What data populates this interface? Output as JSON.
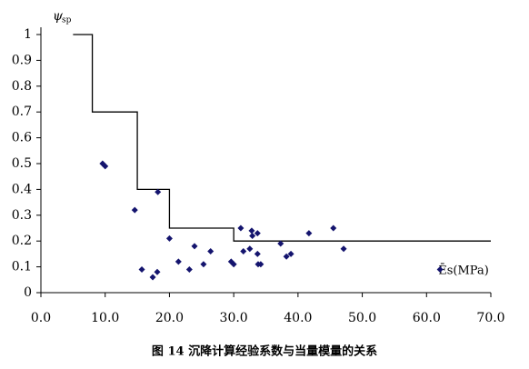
{
  "chart_data": {
    "type": "scatter",
    "y_label": "ψ",
    "y_label_sub": "sp",
    "x_label": "Ēs(MPa)",
    "caption": "图 14   沉降计算经验系数与当量模量的关系",
    "xlim": [
      0,
      70
    ],
    "ylim": [
      0,
      1
    ],
    "xticks": [
      {
        "value": 0,
        "label": "0.0"
      },
      {
        "value": 10,
        "label": "10.0"
      },
      {
        "value": 20,
        "label": "20.0"
      },
      {
        "value": 30,
        "label": "30.0"
      },
      {
        "value": 40,
        "label": "40.0"
      },
      {
        "value": 50,
        "label": "50.0"
      },
      {
        "value": 60,
        "label": "60.0"
      },
      {
        "value": 70,
        "label": "70.0"
      }
    ],
    "yticks": [
      0,
      0.1,
      0.2,
      0.3,
      0.4,
      0.5,
      0.6,
      0.7,
      0.8,
      0.9,
      1
    ],
    "series": [
      {
        "type": "line",
        "color": "#000000",
        "x": [
          5,
          8,
          8,
          15,
          15,
          20,
          20,
          30,
          30,
          70
        ],
        "y": [
          1,
          1,
          0.7,
          0.7,
          0.4,
          0.4,
          0.25,
          0.25,
          0.2,
          0.2
        ]
      },
      {
        "type": "scatter",
        "color": "#14146e",
        "x": [
          9.6,
          10.0,
          14.6,
          18.2,
          15.7,
          17.4,
          18.1,
          20.0,
          21.4,
          23.1,
          23.9,
          25.3,
          26.4,
          29.6,
          30.0,
          31.1,
          31.5,
          32.5,
          32.8,
          32.9,
          33.7,
          33.7,
          33.8,
          34.2,
          37.3,
          38.2,
          38.9,
          41.7,
          45.5,
          47.1,
          62.1
        ],
        "y": [
          0.5,
          0.49,
          0.32,
          0.39,
          0.09,
          0.06,
          0.08,
          0.21,
          0.12,
          0.09,
          0.18,
          0.11,
          0.16,
          0.12,
          0.11,
          0.25,
          0.16,
          0.17,
          0.24,
          0.22,
          0.23,
          0.15,
          0.11,
          0.11,
          0.19,
          0.14,
          0.15,
          0.23,
          0.25,
          0.17,
          0.09
        ]
      }
    ]
  }
}
